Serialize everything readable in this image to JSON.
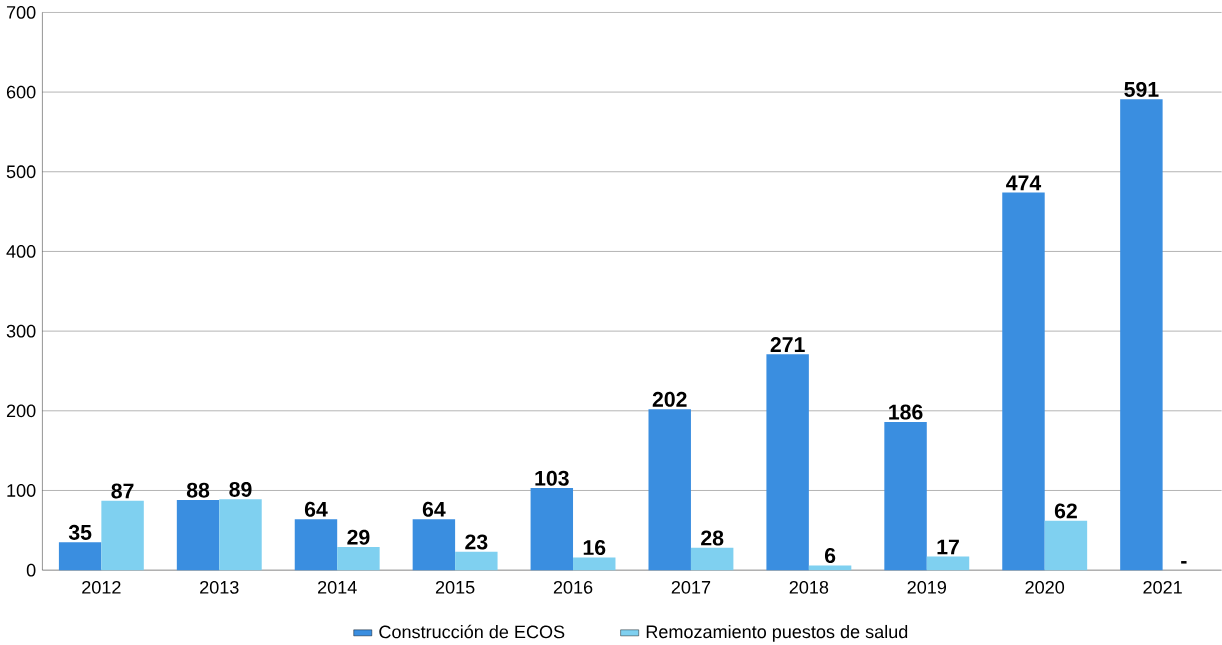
{
  "chart_data": {
    "type": "bar",
    "categories": [
      "2012",
      "2013",
      "2014",
      "2015",
      "2016",
      "2017",
      "2018",
      "2019",
      "2020",
      "2021"
    ],
    "series": [
      {
        "name": "Construcción de ECOS",
        "color": "#3a8ee0",
        "values": [
          35,
          88,
          64,
          64,
          103,
          202,
          271,
          186,
          474,
          591
        ],
        "value_labels": [
          "35",
          "88",
          "64",
          "64",
          "103",
          "202",
          "271",
          "186",
          "474",
          "591"
        ]
      },
      {
        "name": "Remozamiento puestos de salud",
        "color": "#7fd0f0",
        "values": [
          87,
          89,
          29,
          23,
          16,
          28,
          6,
          17,
          62,
          null
        ],
        "value_labels": [
          "87",
          "89",
          "29",
          "23",
          "16",
          "28",
          "6",
          "17",
          "62",
          "-"
        ]
      }
    ],
    "ylim": [
      0,
      700
    ],
    "yticks": [
      0,
      100,
      200,
      300,
      400,
      500,
      600,
      700
    ],
    "grid": "y",
    "legend": "bottom"
  }
}
